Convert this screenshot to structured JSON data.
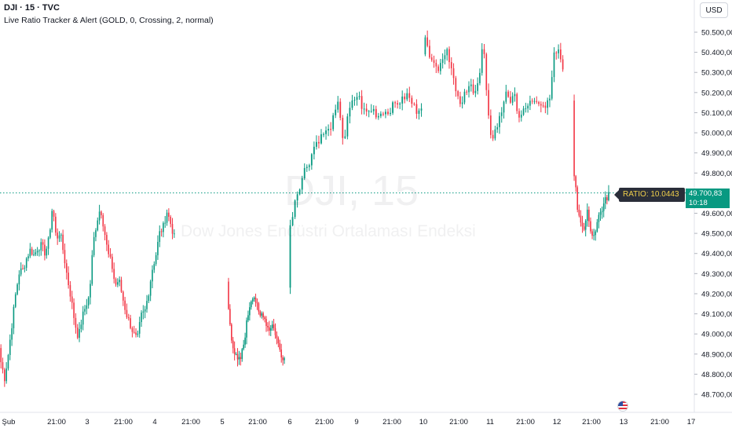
{
  "header": {
    "title": "DJI · 15 · TVC",
    "indicator": "Live Ratio Tracker & Alert (GOLD, 0, Crossing, 2, normal)"
  },
  "currency_label": "USD",
  "watermark": {
    "symbol": "DJI, 15",
    "description": "Dow Jones Endüstri Ortalaması Endeksi"
  },
  "ratio_label": "RATIO: 10.0443",
  "last_price": {
    "price": "49.700,83",
    "countdown": "10:18"
  },
  "colors": {
    "up": "#089981",
    "down": "#f23645",
    "last_line": "#089981",
    "axis_text": "#131722"
  },
  "icons": {
    "event": "us-flag-icon"
  },
  "chart_data": {
    "type": "candlestick",
    "interval": "15",
    "ylim": [
      48660,
      50560
    ],
    "y_ticks": [
      {
        "v": 48700,
        "label": "48.700,00"
      },
      {
        "v": 48800,
        "label": "48.800,00"
      },
      {
        "v": 48900,
        "label": "48.900,00"
      },
      {
        "v": 49000,
        "label": "49.000,00"
      },
      {
        "v": 49100,
        "label": "49.100,00"
      },
      {
        "v": 49200,
        "label": "49.200,00"
      },
      {
        "v": 49300,
        "label": "49.300,00"
      },
      {
        "v": 49400,
        "label": "49.400,00"
      },
      {
        "v": 49500,
        "label": "49.500,00"
      },
      {
        "v": 49600,
        "label": "49.600,00"
      },
      {
        "v": 49800,
        "label": "49.800,00"
      },
      {
        "v": 49900,
        "label": "49.900,00"
      },
      {
        "v": 50000,
        "label": "50.000,00"
      },
      {
        "v": 50100,
        "label": "50.100,00"
      },
      {
        "v": 50200,
        "label": "50.200,00"
      },
      {
        "v": 50300,
        "label": "50.300,00"
      },
      {
        "v": 50400,
        "label": "50.400,00"
      },
      {
        "v": 50500,
        "label": "50.500,00"
      }
    ],
    "x_ticks": [
      "Şub",
      "21:00",
      "3",
      "21:00",
      "4",
      "21:00",
      "5",
      "21:00",
      "6",
      "21:00",
      "9",
      "21:00",
      "10",
      "21:00",
      "11",
      "21:00",
      "12",
      "21:00",
      "13",
      "21:00",
      "17"
    ],
    "last_value": 49700.83,
    "sessions": [
      {
        "open": 48930,
        "points": [
          48860,
          48780,
          48900,
          49050,
          49200,
          49310,
          49320,
          49380,
          49420,
          49390,
          49430,
          49440,
          49400,
          49470,
          49640,
          49470,
          49510,
          49400,
          49280,
          49180,
          49060,
          48980,
          49080,
          49140,
          49190,
          49450,
          49560,
          49630,
          49520,
          49400,
          49350,
          49240,
          49270,
          49180,
          49100,
          49050,
          49000,
          48970,
          49090,
          49110,
          49200,
          49320,
          49390,
          49500,
          49530,
          49610,
          49550,
          49480
        ]
      },
      {
        "open": 49260,
        "points": [
          49120,
          48980,
          48900,
          48860,
          48880,
          48960,
          49070,
          49160,
          49200,
          49150,
          49080,
          49110,
          49060,
          49020,
          49050,
          49010,
          48950,
          48900,
          48880
        ]
      },
      {
        "open": 49230,
        "points": [
          49530,
          49670,
          49740,
          49820,
          49860,
          49940,
          49970,
          50000,
          50010,
          50080,
          50150,
          49940,
          50100,
          50160,
          50190,
          50110,
          50100,
          50120,
          50080,
          50110,
          50100,
          50130,
          50150,
          50160,
          50190,
          50150,
          50110,
          50140
        ]
      },
      {
        "open": 50390,
        "points": [
          50480,
          50370,
          50330,
          50310,
          50360,
          50400,
          50330,
          50170,
          50150,
          50200,
          50230,
          50210,
          50240,
          50480,
          50120,
          49950,
          50030,
          50090,
          50200,
          50160,
          50210,
          50080,
          50100,
          50130,
          50160,
          50170,
          50150,
          50130,
          50180,
          50380,
          50420,
          50300
        ]
      },
      {
        "open": 50160,
        "points": [
          49800,
          49620,
          49560,
          49510,
          49620,
          49480,
          49510,
          49580,
          49620,
          49660,
          49700
        ]
      }
    ]
  }
}
